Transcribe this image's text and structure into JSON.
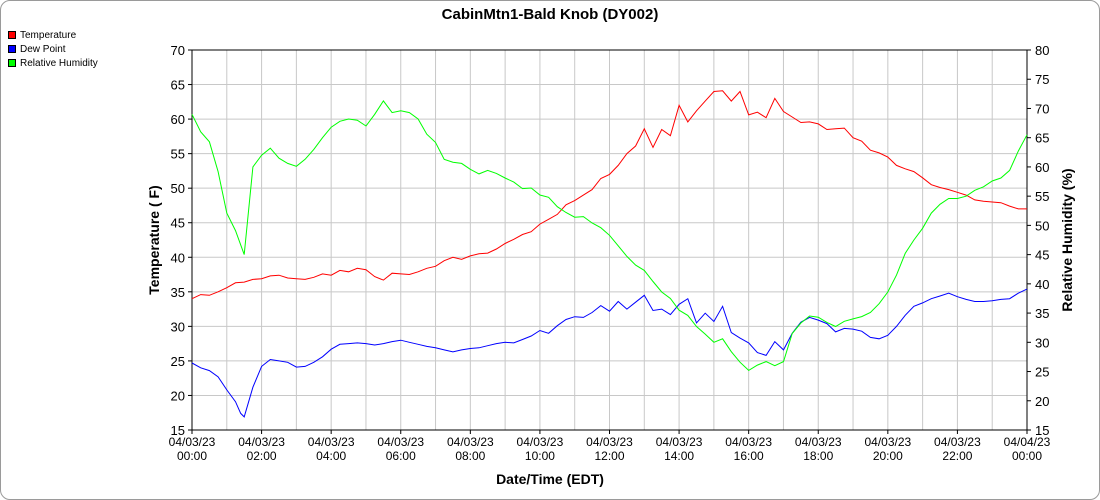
{
  "chart_data": {
    "type": "line",
    "title": "CabinMtn1-Bald Knob (DY002)",
    "xlabel": "Date/Time (EDT)",
    "ylabel": "Temperature ( F)",
    "y2label": "Relative Humidity (%)",
    "ylim": [
      15,
      70
    ],
    "y2lim": [
      15,
      80
    ],
    "xlim_hours": [
      0,
      24
    ],
    "grid": true,
    "legend_position": "top-left",
    "x_tick_labels": [
      [
        "04/03/23",
        "00:00"
      ],
      [
        "04/03/23",
        "02:00"
      ],
      [
        "04/03/23",
        "04:00"
      ],
      [
        "04/03/23",
        "06:00"
      ],
      [
        "04/03/23",
        "08:00"
      ],
      [
        "04/03/23",
        "10:00"
      ],
      [
        "04/03/23",
        "12:00"
      ],
      [
        "04/03/23",
        "14:00"
      ],
      [
        "04/03/23",
        "16:00"
      ],
      [
        "04/03/23",
        "18:00"
      ],
      [
        "04/03/23",
        "20:00"
      ],
      [
        "04/03/23",
        "22:00"
      ],
      [
        "04/04/23",
        "00:00"
      ]
    ],
    "y_ticks": [
      15,
      20,
      25,
      30,
      35,
      40,
      45,
      50,
      55,
      60,
      65,
      70
    ],
    "y2_ticks": [
      15,
      20,
      25,
      30,
      35,
      40,
      45,
      50,
      55,
      60,
      65,
      70,
      75,
      80
    ],
    "series": [
      {
        "name": "Temperature",
        "color": "#ff0000",
        "axis": "left",
        "points": [
          [
            0,
            34.0
          ],
          [
            0.25,
            34.6
          ],
          [
            0.5,
            34.5
          ],
          [
            0.75,
            35.0
          ],
          [
            1,
            35.6
          ],
          [
            1.25,
            36.3
          ],
          [
            1.5,
            36.4
          ],
          [
            1.75,
            36.8
          ],
          [
            2,
            36.9
          ],
          [
            2.25,
            37.3
          ],
          [
            2.5,
            37.4
          ],
          [
            2.75,
            37.0
          ],
          [
            3,
            36.9
          ],
          [
            3.25,
            36.8
          ],
          [
            3.5,
            37.1
          ],
          [
            3.75,
            37.6
          ],
          [
            4,
            37.4
          ],
          [
            4.25,
            38.1
          ],
          [
            4.5,
            37.9
          ],
          [
            4.75,
            38.4
          ],
          [
            5,
            38.2
          ],
          [
            5.25,
            37.2
          ],
          [
            5.5,
            36.7
          ],
          [
            5.75,
            37.7
          ],
          [
            6,
            37.6
          ],
          [
            6.25,
            37.5
          ],
          [
            6.5,
            37.9
          ],
          [
            6.75,
            38.4
          ],
          [
            7,
            38.7
          ],
          [
            7.25,
            39.5
          ],
          [
            7.5,
            40.0
          ],
          [
            7.75,
            39.7
          ],
          [
            8,
            40.2
          ],
          [
            8.25,
            40.5
          ],
          [
            8.5,
            40.6
          ],
          [
            8.75,
            41.2
          ],
          [
            9,
            42.0
          ],
          [
            9.25,
            42.6
          ],
          [
            9.5,
            43.3
          ],
          [
            9.75,
            43.7
          ],
          [
            10,
            44.8
          ],
          [
            10.25,
            45.5
          ],
          [
            10.5,
            46.2
          ],
          [
            10.75,
            47.6
          ],
          [
            11,
            48.2
          ],
          [
            11.25,
            49.0
          ],
          [
            11.5,
            49.8
          ],
          [
            11.75,
            51.4
          ],
          [
            12,
            52.0
          ],
          [
            12.25,
            53.3
          ],
          [
            12.5,
            55.0
          ],
          [
            12.75,
            56.1
          ],
          [
            13,
            58.6
          ],
          [
            13.25,
            55.9
          ],
          [
            13.5,
            58.5
          ],
          [
            13.75,
            57.6
          ],
          [
            14,
            62.0
          ],
          [
            14.25,
            59.6
          ],
          [
            14.5,
            61.2
          ],
          [
            14.75,
            62.6
          ],
          [
            15,
            64.0
          ],
          [
            15.25,
            64.1
          ],
          [
            15.5,
            62.6
          ],
          [
            15.75,
            64.0
          ],
          [
            16,
            60.6
          ],
          [
            16.25,
            61.0
          ],
          [
            16.5,
            60.2
          ],
          [
            16.75,
            63.0
          ],
          [
            17,
            61.1
          ],
          [
            17.25,
            60.3
          ],
          [
            17.5,
            59.5
          ],
          [
            17.75,
            59.6
          ],
          [
            18,
            59.3
          ],
          [
            18.25,
            58.5
          ],
          [
            18.5,
            58.6
          ],
          [
            18.75,
            58.7
          ],
          [
            19,
            57.3
          ],
          [
            19.25,
            56.8
          ],
          [
            19.5,
            55.5
          ],
          [
            19.75,
            55.1
          ],
          [
            20,
            54.5
          ],
          [
            20.25,
            53.3
          ],
          [
            20.5,
            52.8
          ],
          [
            20.75,
            52.4
          ],
          [
            21,
            51.5
          ],
          [
            21.25,
            50.5
          ],
          [
            21.5,
            50.1
          ],
          [
            21.75,
            49.8
          ],
          [
            22,
            49.4
          ],
          [
            22.25,
            49.0
          ],
          [
            22.5,
            48.3
          ],
          [
            22.75,
            48.1
          ],
          [
            23,
            48.0
          ],
          [
            23.25,
            47.9
          ],
          [
            23.5,
            47.4
          ],
          [
            23.75,
            47.0
          ],
          [
            24,
            47.0
          ]
        ]
      },
      {
        "name": "Dew Point",
        "color": "#0000ff",
        "axis": "left",
        "points": [
          [
            0,
            24.7
          ],
          [
            0.25,
            24.0
          ],
          [
            0.5,
            23.6
          ],
          [
            0.75,
            22.7
          ],
          [
            1,
            20.8
          ],
          [
            1.25,
            19.1
          ],
          [
            1.4,
            17.4
          ],
          [
            1.5,
            16.9
          ],
          [
            1.75,
            21.2
          ],
          [
            2,
            24.2
          ],
          [
            2.25,
            25.2
          ],
          [
            2.5,
            25.0
          ],
          [
            2.75,
            24.8
          ],
          [
            3,
            24.1
          ],
          [
            3.25,
            24.2
          ],
          [
            3.5,
            24.8
          ],
          [
            3.75,
            25.6
          ],
          [
            4,
            26.7
          ],
          [
            4.25,
            27.4
          ],
          [
            4.5,
            27.5
          ],
          [
            4.75,
            27.6
          ],
          [
            5,
            27.5
          ],
          [
            5.25,
            27.3
          ],
          [
            5.5,
            27.5
          ],
          [
            5.75,
            27.8
          ],
          [
            6,
            28.0
          ],
          [
            6.25,
            27.7
          ],
          [
            6.5,
            27.4
          ],
          [
            6.75,
            27.1
          ],
          [
            7,
            26.9
          ],
          [
            7.25,
            26.6
          ],
          [
            7.5,
            26.3
          ],
          [
            7.75,
            26.6
          ],
          [
            8,
            26.8
          ],
          [
            8.25,
            26.9
          ],
          [
            8.5,
            27.2
          ],
          [
            8.75,
            27.5
          ],
          [
            9,
            27.7
          ],
          [
            9.25,
            27.6
          ],
          [
            9.5,
            28.1
          ],
          [
            9.75,
            28.6
          ],
          [
            10,
            29.4
          ],
          [
            10.25,
            29.0
          ],
          [
            10.5,
            30.1
          ],
          [
            10.75,
            31.0
          ],
          [
            11,
            31.4
          ],
          [
            11.25,
            31.3
          ],
          [
            11.5,
            32.0
          ],
          [
            11.75,
            33.0
          ],
          [
            12,
            32.2
          ],
          [
            12.25,
            33.6
          ],
          [
            12.5,
            32.5
          ],
          [
            12.75,
            33.5
          ],
          [
            13,
            34.5
          ],
          [
            13.25,
            32.3
          ],
          [
            13.5,
            32.5
          ],
          [
            13.75,
            31.7
          ],
          [
            14,
            33.2
          ],
          [
            14.25,
            34.0
          ],
          [
            14.5,
            30.5
          ],
          [
            14.75,
            31.9
          ],
          [
            15,
            30.7
          ],
          [
            15.25,
            32.9
          ],
          [
            15.5,
            29.1
          ],
          [
            15.75,
            28.3
          ],
          [
            16,
            27.6
          ],
          [
            16.25,
            26.2
          ],
          [
            16.5,
            25.8
          ],
          [
            16.75,
            27.8
          ],
          [
            17,
            26.6
          ],
          [
            17.25,
            29.0
          ],
          [
            17.5,
            30.6
          ],
          [
            17.75,
            31.3
          ],
          [
            18,
            30.9
          ],
          [
            18.25,
            30.4
          ],
          [
            18.5,
            29.2
          ],
          [
            18.75,
            29.7
          ],
          [
            19,
            29.6
          ],
          [
            19.25,
            29.3
          ],
          [
            19.5,
            28.4
          ],
          [
            19.75,
            28.2
          ],
          [
            20,
            28.7
          ],
          [
            20.25,
            30.0
          ],
          [
            20.5,
            31.6
          ],
          [
            20.75,
            32.9
          ],
          [
            21,
            33.4
          ],
          [
            21.25,
            34.0
          ],
          [
            21.5,
            34.4
          ],
          [
            21.75,
            34.8
          ],
          [
            22,
            34.3
          ],
          [
            22.25,
            33.9
          ],
          [
            22.5,
            33.6
          ],
          [
            22.75,
            33.6
          ],
          [
            23,
            33.7
          ],
          [
            23.25,
            33.9
          ],
          [
            23.5,
            34.0
          ],
          [
            23.75,
            34.8
          ],
          [
            24,
            35.4
          ]
        ]
      },
      {
        "name": "Relative Humidity",
        "color": "#00ff00",
        "axis": "right",
        "points": [
          [
            0,
            69.0
          ],
          [
            0.25,
            66.0
          ],
          [
            0.5,
            64.3
          ],
          [
            0.75,
            59.2
          ],
          [
            1,
            52.1
          ],
          [
            1.25,
            49.1
          ],
          [
            1.5,
            45.0
          ],
          [
            1.75,
            60.0
          ],
          [
            2,
            62.0
          ],
          [
            2.25,
            63.2
          ],
          [
            2.5,
            61.5
          ],
          [
            2.75,
            60.6
          ],
          [
            3,
            60.1
          ],
          [
            3.25,
            61.3
          ],
          [
            3.5,
            63.0
          ],
          [
            3.75,
            65.0
          ],
          [
            4,
            66.8
          ],
          [
            4.25,
            67.8
          ],
          [
            4.5,
            68.2
          ],
          [
            4.75,
            68.0
          ],
          [
            5,
            67.0
          ],
          [
            5.25,
            69.0
          ],
          [
            5.5,
            71.3
          ],
          [
            5.75,
            69.3
          ],
          [
            6,
            69.6
          ],
          [
            6.25,
            69.3
          ],
          [
            6.5,
            68.2
          ],
          [
            6.75,
            65.6
          ],
          [
            7,
            64.2
          ],
          [
            7.25,
            61.3
          ],
          [
            7.5,
            60.8
          ],
          [
            7.75,
            60.6
          ],
          [
            8,
            59.6
          ],
          [
            8.25,
            58.8
          ],
          [
            8.5,
            59.4
          ],
          [
            8.75,
            58.9
          ],
          [
            9,
            58.1
          ],
          [
            9.25,
            57.4
          ],
          [
            9.5,
            56.3
          ],
          [
            9.75,
            56.4
          ],
          [
            10,
            55.2
          ],
          [
            10.25,
            54.8
          ],
          [
            10.5,
            53.2
          ],
          [
            10.75,
            52.2
          ],
          [
            11,
            51.4
          ],
          [
            11.25,
            51.5
          ],
          [
            11.5,
            50.4
          ],
          [
            11.75,
            49.6
          ],
          [
            12,
            48.3
          ],
          [
            12.25,
            46.5
          ],
          [
            12.5,
            44.7
          ],
          [
            12.75,
            43.2
          ],
          [
            13,
            42.3
          ],
          [
            13.25,
            40.4
          ],
          [
            13.5,
            38.6
          ],
          [
            13.75,
            37.5
          ],
          [
            14,
            35.5
          ],
          [
            14.25,
            34.6
          ],
          [
            14.5,
            32.7
          ],
          [
            14.75,
            31.4
          ],
          [
            15,
            30.0
          ],
          [
            15.25,
            30.6
          ],
          [
            15.5,
            28.4
          ],
          [
            15.75,
            26.6
          ],
          [
            16,
            25.2
          ],
          [
            16.25,
            26.1
          ],
          [
            16.5,
            26.7
          ],
          [
            16.75,
            26.0
          ],
          [
            17,
            26.7
          ],
          [
            17.25,
            31.5
          ],
          [
            17.5,
            33.3
          ],
          [
            17.75,
            34.5
          ],
          [
            18,
            34.3
          ],
          [
            18.25,
            33.4
          ],
          [
            18.5,
            32.7
          ],
          [
            18.75,
            33.6
          ],
          [
            19,
            34.0
          ],
          [
            19.25,
            34.4
          ],
          [
            19.5,
            35.1
          ],
          [
            19.75,
            36.6
          ],
          [
            20,
            38.6
          ],
          [
            20.25,
            41.5
          ],
          [
            20.5,
            45.2
          ],
          [
            20.75,
            47.5
          ],
          [
            21,
            49.5
          ],
          [
            21.25,
            52.1
          ],
          [
            21.5,
            53.6
          ],
          [
            21.75,
            54.6
          ],
          [
            22,
            54.6
          ],
          [
            22.25,
            55.0
          ],
          [
            22.5,
            56.0
          ],
          [
            22.75,
            56.6
          ],
          [
            23,
            57.6
          ],
          [
            23.25,
            58.1
          ],
          [
            23.5,
            59.4
          ],
          [
            23.75,
            62.7
          ],
          [
            24,
            65.5
          ]
        ]
      }
    ]
  }
}
